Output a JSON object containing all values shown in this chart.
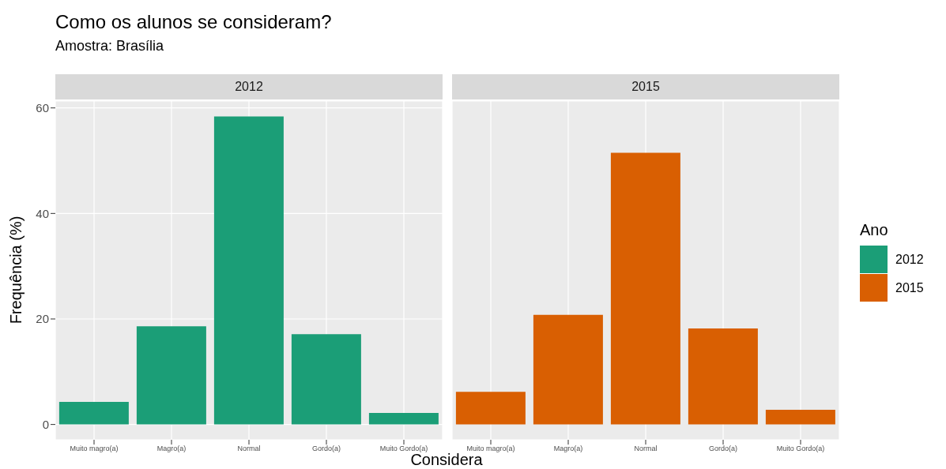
{
  "chart_data": [
    {
      "type": "bar",
      "title": "Como os alunos se consideram?",
      "subtitle": "Amostra: Brasília",
      "xlabel": "Considera",
      "ylabel": "Frequência (%)",
      "annotations": [
        "2012"
      ],
      "categories": [
        "Muito magro(a)",
        "Magro(a)",
        "Normal",
        "Gordo(a)",
        "Muito Gordo(a)"
      ],
      "series": [
        {
          "name": "2012",
          "color": "#1b9e77",
          "values": [
            4.3,
            18.6,
            58.4,
            17.1,
            2.2
          ]
        }
      ],
      "ylim": [
        -2.9,
        61.3
      ],
      "yticks": [
        0,
        20,
        40,
        60
      ],
      "grid": true,
      "legend": "right"
    },
    {
      "type": "bar",
      "annotations": [
        "2015"
      ],
      "legend_title": "Ano",
      "categories": [
        "Muito magro(a)",
        "Magro(a)",
        "Normal",
        "Gordo(a)",
        "Muito Gordo(a)"
      ],
      "series": [
        {
          "name": "2015",
          "color": "#d95f02",
          "values": [
            6.2,
            20.8,
            51.5,
            18.2,
            2.8
          ]
        }
      ],
      "ylim": [
        -2.9,
        61.3
      ],
      "yticks": [
        0,
        20,
        40,
        60
      ],
      "grid": true,
      "legend": "right",
      "tick_labels": "x"
    }
  ]
}
